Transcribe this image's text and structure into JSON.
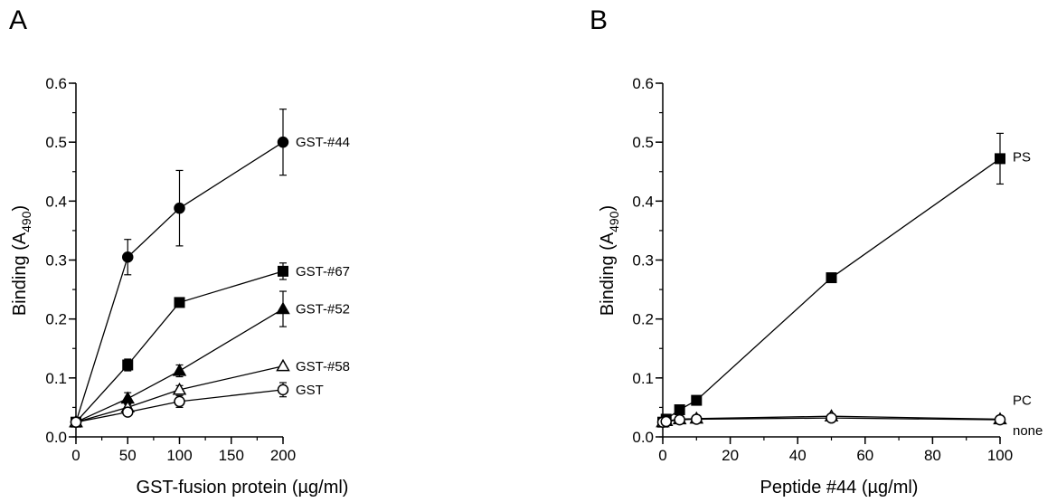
{
  "chart_data": [
    {
      "type": "line",
      "panel": "A",
      "xlabel": "GST-fusion protein (µg/ml)",
      "ylabel": "Binding (A",
      "ylabel_sub": "490",
      "ylabel_close": ")",
      "xlim": [
        0,
        200
      ],
      "ylim": [
        0.0,
        0.6
      ],
      "xticks": [
        0,
        50,
        100,
        150,
        200
      ],
      "xtick_labels": [
        "0",
        "50",
        "100",
        "150",
        "200"
      ],
      "yticks": [
        0.0,
        0.1,
        0.2,
        0.3,
        0.4,
        0.5,
        0.6
      ],
      "ytick_labels": [
        "0.0",
        "0.1",
        "0.2",
        "0.3",
        "0.4",
        "0.5",
        "0.6"
      ],
      "legend": "direct labels at line ends",
      "grid": false,
      "series": [
        {
          "name": "GST-#44",
          "marker": "circle-filled",
          "x": [
            0,
            50,
            100,
            200
          ],
          "y": [
            0.025,
            0.305,
            0.388,
            0.5
          ],
          "err": [
            0,
            0.03,
            0.064,
            0.056
          ]
        },
        {
          "name": "GST-#67",
          "marker": "square-filled",
          "x": [
            0,
            50,
            100,
            200
          ],
          "y": [
            0.025,
            0.122,
            0.228,
            0.281
          ],
          "err": [
            0,
            0.01,
            0,
            0.014
          ]
        },
        {
          "name": "GST-#52",
          "marker": "triangle-filled",
          "x": [
            0,
            50,
            100,
            200
          ],
          "y": [
            0.025,
            0.065,
            0.112,
            0.217
          ],
          "err": [
            0,
            0.01,
            0.01,
            0.03
          ]
        },
        {
          "name": "GST-#58",
          "marker": "triangle-open",
          "x": [
            0,
            50,
            100,
            200
          ],
          "y": [
            0.025,
            0.05,
            0.08,
            0.12
          ],
          "err": [
            0,
            0.006,
            0.007,
            0
          ]
        },
        {
          "name": "GST",
          "marker": "circle-open",
          "x": [
            0,
            50,
            100,
            200
          ],
          "y": [
            0.025,
            0.042,
            0.06,
            0.08
          ],
          "err": [
            0,
            0.005,
            0.01,
            0.012
          ]
        }
      ]
    },
    {
      "type": "line",
      "panel": "B",
      "xlabel": "Peptide #44 (µg/ml)",
      "ylabel": "Binding (A",
      "ylabel_sub": "490",
      "ylabel_close": ")",
      "xlim": [
        0,
        100
      ],
      "ylim": [
        0.0,
        0.6
      ],
      "xticks": [
        0,
        20,
        40,
        60,
        80,
        100
      ],
      "xtick_labels": [
        "0",
        "20",
        "40",
        "60",
        "80",
        "100"
      ],
      "yticks": [
        0.0,
        0.1,
        0.2,
        0.3,
        0.4,
        0.5,
        0.6
      ],
      "ytick_labels": [
        "0.0",
        "0.1",
        "0.2",
        "0.3",
        "0.4",
        "0.5",
        "0.6"
      ],
      "legend": "direct labels at line ends",
      "grid": false,
      "series": [
        {
          "name": "PS",
          "marker": "square-filled",
          "x": [
            0,
            1,
            5,
            10,
            50,
            100
          ],
          "y": [
            0.025,
            0.03,
            0.046,
            0.062,
            0.27,
            0.472
          ],
          "err": [
            0,
            0,
            0,
            0,
            0,
            0.043
          ]
        },
        {
          "name": "PC",
          "marker": "triangle-open",
          "x": [
            0,
            1,
            5,
            10,
            50,
            100
          ],
          "y": [
            0.025,
            0.027,
            0.03,
            0.031,
            0.035,
            0.03
          ],
          "err": [
            0,
            0,
            0,
            0,
            0,
            0
          ]
        },
        {
          "name": "none",
          "marker": "circle-open",
          "x": [
            0,
            1,
            5,
            10,
            50,
            100
          ],
          "y": [
            0.025,
            0.026,
            0.029,
            0.03,
            0.032,
            0.029
          ],
          "err": [
            0,
            0,
            0,
            0,
            0,
            0
          ]
        }
      ]
    }
  ]
}
